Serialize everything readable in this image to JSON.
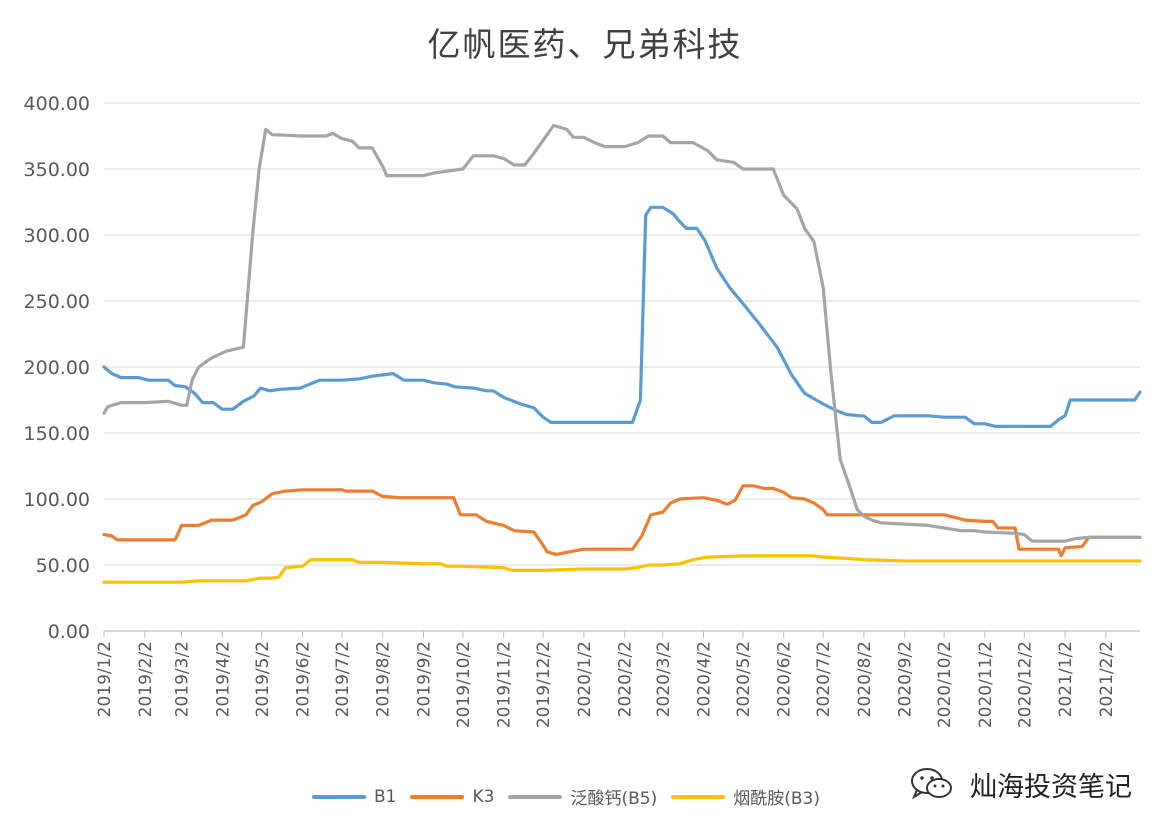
{
  "chart_data": {
    "type": "line",
    "title": "亿帆医药、兄弟科技",
    "ylim": [
      0,
      400
    ],
    "yticks": [
      "0.00",
      "50.00",
      "100.00",
      "150.00",
      "200.00",
      "250.00",
      "300.00",
      "350.00",
      "400.00"
    ],
    "xticks": [
      "2019/1/2",
      "2019/2/2",
      "2019/3/2",
      "2019/4/2",
      "2019/5/2",
      "2019/6/2",
      "2019/7/2",
      "2019/8/2",
      "2019/9/2",
      "2019/10/2",
      "2019/11/2",
      "2019/12/2",
      "2020/1/2",
      "2020/2/2",
      "2020/3/2",
      "2020/4/2",
      "2020/5/2",
      "2020/6/2",
      "2020/7/2",
      "2020/8/2",
      "2020/9/2",
      "2020/10/2",
      "2020/11/2",
      "2020/12/2",
      "2021/1/2",
      "2021/2/2"
    ],
    "xlim": [
      "2019/1/2",
      "2021/2/28"
    ],
    "grid": true,
    "legend_position": "bottom",
    "series": [
      {
        "name": "B1",
        "color": "#5B9BD5",
        "points": [
          [
            "2019/1/2",
            200
          ],
          [
            "2019/1/8",
            195
          ],
          [
            "2019/1/15",
            192
          ],
          [
            "2019/1/28",
            192
          ],
          [
            "2019/2/5",
            190
          ],
          [
            "2019/2/20",
            190
          ],
          [
            "2019/2/25",
            186
          ],
          [
            "2019/3/5",
            185
          ],
          [
            "2019/3/12",
            180
          ],
          [
            "2019/3/18",
            173
          ],
          [
            "2019/3/26",
            173
          ],
          [
            "2019/4/2",
            168
          ],
          [
            "2019/4/10",
            168
          ],
          [
            "2019/4/18",
            174
          ],
          [
            "2019/4/26",
            178
          ],
          [
            "2019/5/1",
            184
          ],
          [
            "2019/5/8",
            182
          ],
          [
            "2019/5/15",
            183
          ],
          [
            "2019/5/31",
            184
          ],
          [
            "2019/6/5",
            186
          ],
          [
            "2019/6/15",
            190
          ],
          [
            "2019/7/2",
            190
          ],
          [
            "2019/7/15",
            191
          ],
          [
            "2019/7/25",
            193
          ],
          [
            "2019/8/2",
            194
          ],
          [
            "2019/8/10",
            195
          ],
          [
            "2019/8/18",
            190
          ],
          [
            "2019/9/2",
            190
          ],
          [
            "2019/9/10",
            188
          ],
          [
            "2019/9/20",
            187
          ],
          [
            "2019/9/26",
            185
          ],
          [
            "2019/10/10",
            184
          ],
          [
            "2019/10/20",
            182
          ],
          [
            "2019/10/25",
            182
          ],
          [
            "2019/11/2",
            177
          ],
          [
            "2019/11/15",
            172
          ],
          [
            "2019/11/25",
            169
          ],
          [
            "2019/12/2",
            162
          ],
          [
            "2019/12/8",
            158
          ],
          [
            "2020/1/2",
            158
          ],
          [
            "2020/2/8",
            158
          ],
          [
            "2020/2/14",
            175
          ],
          [
            "2020/2/18",
            315
          ],
          [
            "2020/2/22",
            321
          ],
          [
            "2020/3/2",
            321
          ],
          [
            "2020/3/10",
            316
          ],
          [
            "2020/3/15",
            310
          ],
          [
            "2020/3/20",
            305
          ],
          [
            "2020/3/28",
            305
          ],
          [
            "2020/4/3",
            296
          ],
          [
            "2020/4/12",
            275
          ],
          [
            "2020/4/22",
            260
          ],
          [
            "2020/5/2",
            248
          ],
          [
            "2020/5/15",
            232
          ],
          [
            "2020/5/28",
            215
          ],
          [
            "2020/6/8",
            194
          ],
          [
            "2020/6/18",
            180
          ],
          [
            "2020/7/2",
            172
          ],
          [
            "2020/7/12",
            167
          ],
          [
            "2020/7/20",
            164
          ],
          [
            "2020/7/30",
            163
          ],
          [
            "2020/8/2",
            163
          ],
          [
            "2020/8/8",
            158
          ],
          [
            "2020/8/15",
            158
          ],
          [
            "2020/8/25",
            163
          ],
          [
            "2020/9/2",
            163
          ],
          [
            "2020/9/20",
            163
          ],
          [
            "2020/10/2",
            162
          ],
          [
            "2020/10/18",
            162
          ],
          [
            "2020/10/25",
            157
          ],
          [
            "2020/11/2",
            157
          ],
          [
            "2020/11/10",
            155
          ],
          [
            "2020/12/2",
            155
          ],
          [
            "2020/12/22",
            155
          ],
          [
            "2020/12/28",
            160
          ],
          [
            "2021/1/2",
            163
          ],
          [
            "2021/1/6",
            175
          ],
          [
            "2021/1/15",
            175
          ],
          [
            "2021/2/24",
            175
          ],
          [
            "2021/2/28",
            181
          ]
        ]
      },
      {
        "name": "K3",
        "color": "#ED7D31",
        "points": [
          [
            "2019/1/2",
            73
          ],
          [
            "2019/1/8",
            72
          ],
          [
            "2019/1/12",
            69
          ],
          [
            "2019/2/2",
            69
          ],
          [
            "2019/2/20",
            69
          ],
          [
            "2019/2/25",
            69
          ],
          [
            "2019/3/2",
            80
          ],
          [
            "2019/3/15",
            80
          ],
          [
            "2019/3/25",
            84
          ],
          [
            "2019/4/10",
            84
          ],
          [
            "2019/4/20",
            88
          ],
          [
            "2019/4/25",
            95
          ],
          [
            "2019/5/2",
            98
          ],
          [
            "2019/5/10",
            104
          ],
          [
            "2019/5/20",
            106
          ],
          [
            "2019/6/2",
            107
          ],
          [
            "2019/7/2",
            107
          ],
          [
            "2019/7/5",
            106
          ],
          [
            "2019/7/25",
            106
          ],
          [
            "2019/8/2",
            102
          ],
          [
            "2019/8/15",
            101
          ],
          [
            "2019/9/2",
            101
          ],
          [
            "2019/9/25",
            101
          ],
          [
            "2019/9/30",
            88
          ],
          [
            "2019/10/12",
            88
          ],
          [
            "2019/10/20",
            83
          ],
          [
            "2019/11/2",
            80
          ],
          [
            "2019/11/10",
            76
          ],
          [
            "2019/11/25",
            75
          ],
          [
            "2019/12/2",
            65
          ],
          [
            "2019/12/5",
            60
          ],
          [
            "2019/12/12",
            58
          ],
          [
            "2019/12/22",
            60
          ],
          [
            "2020/1/2",
            62
          ],
          [
            "2020/2/2",
            62
          ],
          [
            "2020/2/8",
            62
          ],
          [
            "2020/2/15",
            72
          ],
          [
            "2020/2/22",
            88
          ],
          [
            "2020/3/2",
            90
          ],
          [
            "2020/3/8",
            97
          ],
          [
            "2020/3/15",
            100
          ],
          [
            "2020/4/2",
            101
          ],
          [
            "2020/4/12",
            99
          ],
          [
            "2020/4/20",
            96
          ],
          [
            "2020/4/26",
            99
          ],
          [
            "2020/5/2",
            110
          ],
          [
            "2020/5/10",
            110
          ],
          [
            "2020/5/18",
            108
          ],
          [
            "2020/5/25",
            108
          ],
          [
            "2020/6/2",
            105
          ],
          [
            "2020/6/8",
            101
          ],
          [
            "2020/6/18",
            100
          ],
          [
            "2020/6/25",
            97
          ],
          [
            "2020/7/2",
            92
          ],
          [
            "2020/7/5",
            88
          ],
          [
            "2020/8/2",
            88
          ],
          [
            "2020/10/2",
            88
          ],
          [
            "2020/10/18",
            84
          ],
          [
            "2020/11/2",
            83
          ],
          [
            "2020/11/8",
            83
          ],
          [
            "2020/11/12",
            78
          ],
          [
            "2020/11/25",
            78
          ],
          [
            "2020/11/28",
            62
          ],
          [
            "2020/12/2",
            62
          ],
          [
            "2020/12/28",
            62
          ],
          [
            "2020/12/30",
            57
          ],
          [
            "2021/1/2",
            63
          ],
          [
            "2021/1/15",
            64
          ],
          [
            "2021/1/20",
            71
          ],
          [
            "2021/2/2",
            71
          ],
          [
            "2021/2/28",
            71
          ]
        ]
      },
      {
        "name": "泛酸钙(B5)",
        "color": "#A5A5A5",
        "points": [
          [
            "2019/1/2",
            165
          ],
          [
            "2019/1/5",
            170
          ],
          [
            "2019/1/15",
            173
          ],
          [
            "2019/2/2",
            173
          ],
          [
            "2019/2/20",
            174
          ],
          [
            "2019/3/2",
            171
          ],
          [
            "2019/3/6",
            171
          ],
          [
            "2019/3/10",
            190
          ],
          [
            "2019/3/15",
            200
          ],
          [
            "2019/3/25",
            207
          ],
          [
            "2019/4/5",
            212
          ],
          [
            "2019/4/18",
            215
          ],
          [
            "2019/4/25",
            300
          ],
          [
            "2019/4/30",
            350
          ],
          [
            "2019/5/5",
            380
          ],
          [
            "2019/5/10",
            376
          ],
          [
            "2019/6/2",
            375
          ],
          [
            "2019/6/20",
            375
          ],
          [
            "2019/6/25",
            377
          ],
          [
            "2019/7/2",
            373
          ],
          [
            "2019/7/10",
            371
          ],
          [
            "2019/7/15",
            366
          ],
          [
            "2019/7/25",
            366
          ],
          [
            "2019/8/2",
            352
          ],
          [
            "2019/8/5",
            345
          ],
          [
            "2019/9/2",
            345
          ],
          [
            "2019/9/10",
            347
          ],
          [
            "2019/10/2",
            350
          ],
          [
            "2019/10/10",
            360
          ],
          [
            "2019/10/25",
            360
          ],
          [
            "2019/11/2",
            358
          ],
          [
            "2019/11/10",
            353
          ],
          [
            "2019/11/18",
            353
          ],
          [
            "2019/11/25",
            362
          ],
          [
            "2019/12/5",
            376
          ],
          [
            "2019/12/10",
            383
          ],
          [
            "2019/12/20",
            380
          ],
          [
            "2019/12/25",
            374
          ],
          [
            "2020/1/2",
            374
          ],
          [
            "2020/1/10",
            370
          ],
          [
            "2020/1/18",
            367
          ],
          [
            "2020/2/2",
            367
          ],
          [
            "2020/2/12",
            370
          ],
          [
            "2020/2/20",
            375
          ],
          [
            "2020/3/2",
            375
          ],
          [
            "2020/3/8",
            370
          ],
          [
            "2020/3/25",
            370
          ],
          [
            "2020/4/5",
            364
          ],
          [
            "2020/4/12",
            357
          ],
          [
            "2020/4/25",
            355
          ],
          [
            "2020/5/2",
            350
          ],
          [
            "2020/5/25",
            350
          ],
          [
            "2020/6/2",
            330
          ],
          [
            "2020/6/12",
            320
          ],
          [
            "2020/6/18",
            305
          ],
          [
            "2020/6/25",
            295
          ],
          [
            "2020/7/2",
            260
          ],
          [
            "2020/7/8",
            195
          ],
          [
            "2020/7/15",
            130
          ],
          [
            "2020/7/22",
            110
          ],
          [
            "2020/7/28",
            92
          ],
          [
            "2020/8/2",
            87
          ],
          [
            "2020/8/8",
            84
          ],
          [
            "2020/8/15",
            82
          ],
          [
            "2020/9/2",
            81
          ],
          [
            "2020/9/20",
            80
          ],
          [
            "2020/10/2",
            78
          ],
          [
            "2020/10/15",
            76
          ],
          [
            "2020/10/25",
            76
          ],
          [
            "2020/11/2",
            75
          ],
          [
            "2020/11/25",
            74
          ],
          [
            "2020/12/2",
            73
          ],
          [
            "2020/12/8",
            68
          ],
          [
            "2021/1/2",
            68
          ],
          [
            "2021/1/10",
            70
          ],
          [
            "2021/1/20",
            71
          ],
          [
            "2021/2/28",
            71
          ]
        ]
      },
      {
        "name": "烟酰胺(B3)",
        "color": "#FFC000",
        "points": [
          [
            "2019/1/2",
            37
          ],
          [
            "2019/3/2",
            37
          ],
          [
            "2019/3/15",
            38
          ],
          [
            "2019/4/2",
            38
          ],
          [
            "2019/4/20",
            38
          ],
          [
            "2019/4/30",
            40
          ],
          [
            "2019/5/10",
            40
          ],
          [
            "2019/5/15",
            41
          ],
          [
            "2019/5/20",
            48
          ],
          [
            "2019/6/2",
            49
          ],
          [
            "2019/6/8",
            54
          ],
          [
            "2019/7/2",
            54
          ],
          [
            "2019/7/10",
            54
          ],
          [
            "2019/7/15",
            52
          ],
          [
            "2019/8/2",
            52
          ],
          [
            "2019/9/2",
            51
          ],
          [
            "2019/9/15",
            51
          ],
          [
            "2019/9/20",
            49
          ],
          [
            "2019/10/2",
            49
          ],
          [
            "2019/11/2",
            48
          ],
          [
            "2019/11/8",
            46
          ],
          [
            "2019/12/2",
            46
          ],
          [
            "2020/1/2",
            47
          ],
          [
            "2020/2/2",
            47
          ],
          [
            "2020/2/12",
            48
          ],
          [
            "2020/2/20",
            50
          ],
          [
            "2020/3/2",
            50
          ],
          [
            "2020/3/15",
            51
          ],
          [
            "2020/3/25",
            54
          ],
          [
            "2020/4/5",
            56
          ],
          [
            "2020/5/2",
            57
          ],
          [
            "2020/6/2",
            57
          ],
          [
            "2020/6/25",
            57
          ],
          [
            "2020/7/2",
            56
          ],
          [
            "2020/7/20",
            55
          ],
          [
            "2020/8/2",
            54
          ],
          [
            "2020/9/2",
            53
          ],
          [
            "2021/2/28",
            53
          ]
        ]
      }
    ]
  },
  "legend": {
    "items": [
      {
        "label": "B1",
        "color": "#5B9BD5"
      },
      {
        "label": "K3",
        "color": "#ED7D31"
      },
      {
        "label": "泛酸钙(B5)",
        "color": "#A5A5A5"
      },
      {
        "label": "烟酰胺(B3)",
        "color": "#FFC000"
      }
    ]
  },
  "watermark": {
    "icon": "wechat-icon",
    "text": "灿海投资笔记"
  }
}
